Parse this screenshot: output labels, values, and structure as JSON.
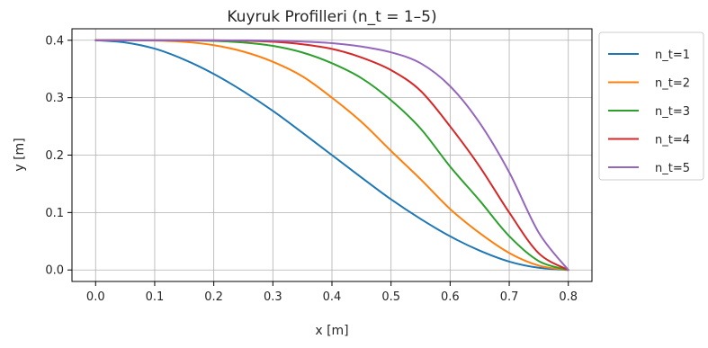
{
  "chart_data": {
    "type": "line",
    "title": "Kuyruk Profilleri (n_t = 1–5)",
    "xlabel": "x [m]",
    "ylabel": "y [m]",
    "xlim": [
      -0.04,
      0.84
    ],
    "ylim": [
      -0.02,
      0.42
    ],
    "xticks": [
      0.0,
      0.1,
      0.2,
      0.3,
      0.4,
      0.5,
      0.6,
      0.7,
      0.8
    ],
    "xtick_labels": [
      "0.0",
      "0.1",
      "0.2",
      "0.3",
      "0.4",
      "0.5",
      "0.6",
      "0.7",
      "0.8"
    ],
    "yticks": [
      0.0,
      0.1,
      0.2,
      0.3,
      0.4
    ],
    "ytick_labels": [
      "0.0",
      "0.1",
      "0.2",
      "0.3",
      "0.4"
    ],
    "grid": true,
    "legend_position": "outside-right-top",
    "series": [
      {
        "name": "n_t=1",
        "color": "#1f77b4",
        "x": [
          0.0,
          0.05,
          0.1,
          0.15,
          0.2,
          0.25,
          0.3,
          0.35,
          0.4,
          0.45,
          0.5,
          0.55,
          0.6,
          0.65,
          0.7,
          0.75,
          0.8
        ],
        "y": [
          0.4,
          0.3962,
          0.3854,
          0.3663,
          0.3414,
          0.3111,
          0.2771,
          0.239,
          0.2,
          0.161,
          0.1229,
          0.0889,
          0.0586,
          0.0337,
          0.0146,
          0.0038,
          0.0
        ]
      },
      {
        "name": "n_t=2",
        "color": "#ff7f0e",
        "x": [
          0.0,
          0.05,
          0.1,
          0.15,
          0.2,
          0.25,
          0.3,
          0.35,
          0.4,
          0.45,
          0.5,
          0.55,
          0.6,
          0.65,
          0.7,
          0.75,
          0.8
        ],
        "y": [
          0.4,
          0.3999,
          0.3994,
          0.3972,
          0.3914,
          0.3803,
          0.3626,
          0.3372,
          0.3,
          0.2577,
          0.2072,
          0.158,
          0.1061,
          0.0642,
          0.0296,
          0.0077,
          0.0
        ]
      },
      {
        "name": "n_t=3",
        "color": "#2ca02c",
        "x": [
          0.0,
          0.05,
          0.1,
          0.15,
          0.2,
          0.25,
          0.3,
          0.35,
          0.4,
          0.45,
          0.5,
          0.55,
          0.6,
          0.65,
          0.7,
          0.75,
          0.8
        ],
        "y": [
          0.4,
          0.4,
          0.3999,
          0.3997,
          0.3988,
          0.3962,
          0.3902,
          0.3787,
          0.36,
          0.334,
          0.2955,
          0.2462,
          0.18,
          0.1208,
          0.0589,
          0.0155,
          0.0
        ]
      },
      {
        "name": "n_t=4",
        "color": "#d62728",
        "x": [
          0.0,
          0.05,
          0.1,
          0.15,
          0.2,
          0.25,
          0.3,
          0.35,
          0.4,
          0.45,
          0.5,
          0.55,
          0.6,
          0.65,
          0.7,
          0.75,
          0.8
        ],
        "y": [
          0.4,
          0.4,
          0.4,
          0.4,
          0.3998,
          0.3992,
          0.3974,
          0.393,
          0.385,
          0.37,
          0.348,
          0.312,
          0.25,
          0.18,
          0.1,
          0.029,
          0.0
        ]
      },
      {
        "name": "n_t=5",
        "color": "#9467bd",
        "x": [
          0.0,
          0.05,
          0.1,
          0.15,
          0.2,
          0.25,
          0.3,
          0.35,
          0.4,
          0.45,
          0.5,
          0.55,
          0.6,
          0.65,
          0.7,
          0.75,
          0.8
        ],
        "y": [
          0.4,
          0.4,
          0.4,
          0.4,
          0.4,
          0.3998,
          0.3993,
          0.3977,
          0.395,
          0.389,
          0.379,
          0.36,
          0.32,
          0.256,
          0.17,
          0.065,
          0.0
        ]
      }
    ]
  }
}
